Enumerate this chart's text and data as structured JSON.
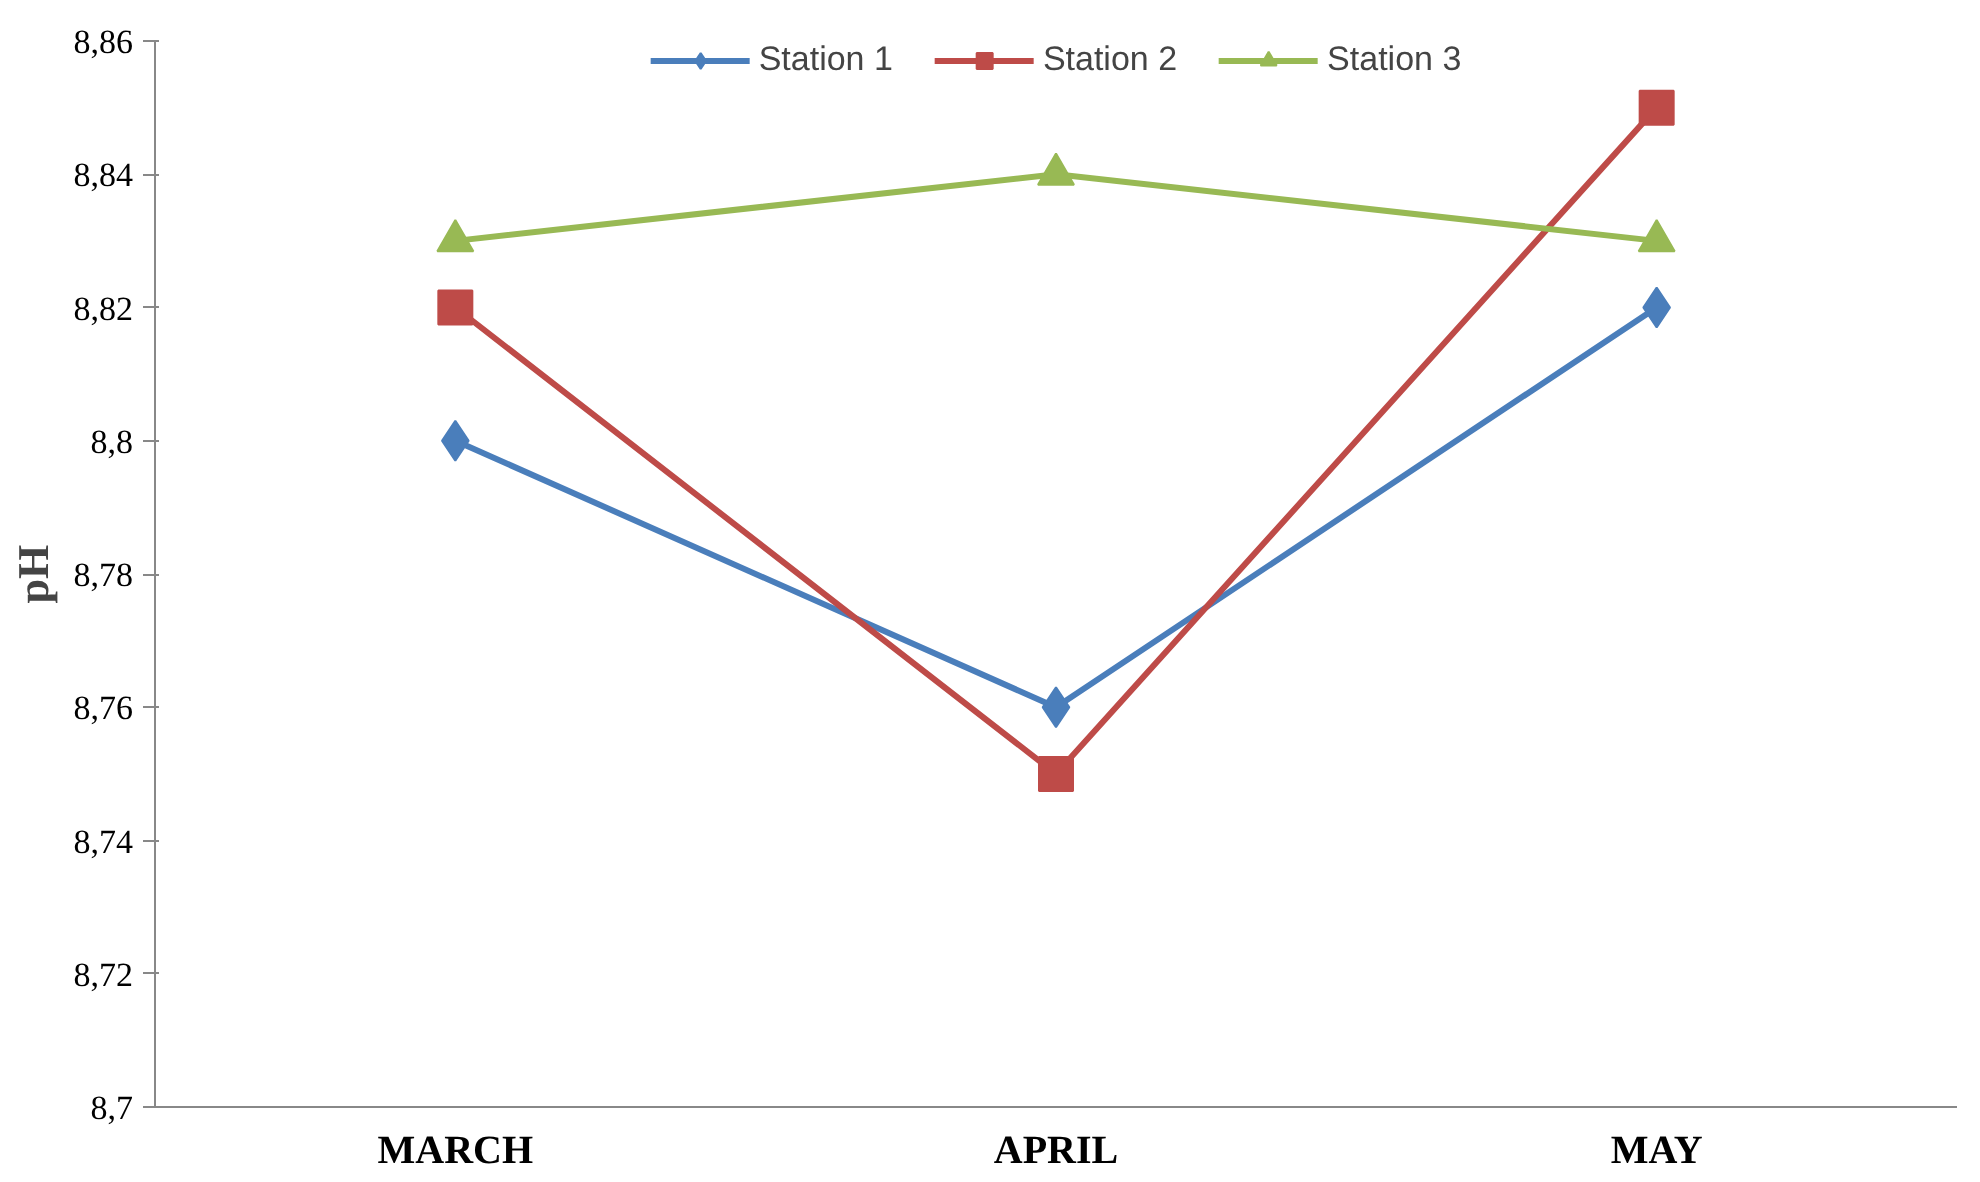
{
  "chart_data": {
    "type": "line",
    "ylabel": "pH",
    "categories": [
      "MARCH",
      "APRIL",
      "MAY"
    ],
    "series": [
      {
        "name": "Station 1",
        "color": "#4a7ebb",
        "marker": "diamond",
        "values": [
          8.8,
          8.76,
          8.82
        ]
      },
      {
        "name": "Station 2",
        "color": "#be4b48",
        "marker": "square",
        "values": [
          8.82,
          8.75,
          8.85
        ]
      },
      {
        "name": "Station 3",
        "color": "#98b954",
        "marker": "triangle",
        "values": [
          8.83,
          8.84,
          8.83
        ]
      }
    ],
    "ylim": [
      8.7,
      8.86
    ],
    "yticks": [
      {
        "value": 8.7,
        "label": "8,7"
      },
      {
        "value": 8.72,
        "label": "8,72"
      },
      {
        "value": 8.74,
        "label": "8,74"
      },
      {
        "value": 8.76,
        "label": "8,76"
      },
      {
        "value": 8.78,
        "label": "8,78"
      },
      {
        "value": 8.8,
        "label": "8,8"
      },
      {
        "value": 8.82,
        "label": "8,82"
      },
      {
        "value": 8.84,
        "label": "8,84"
      },
      {
        "value": 8.86,
        "label": "8,86"
      }
    ],
    "grid": false,
    "legend": "top",
    "line_style": "solid"
  }
}
